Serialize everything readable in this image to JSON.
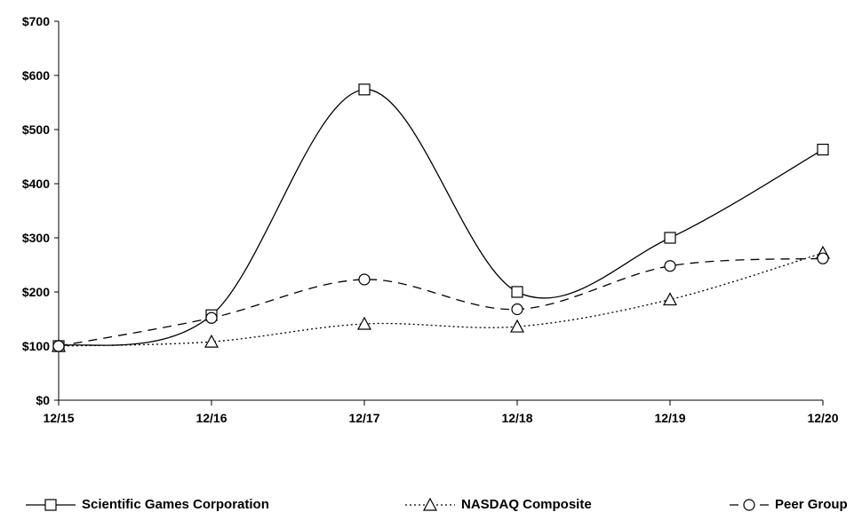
{
  "chart_data": {
    "type": "line",
    "categories": [
      "12/15",
      "12/16",
      "12/17",
      "12/18",
      "12/19",
      "12/20"
    ],
    "y_ticks": [
      "$0",
      "$100",
      "$200",
      "$300",
      "$400",
      "$500",
      "$600",
      "$700"
    ],
    "ylim": [
      0,
      700
    ],
    "grid": false,
    "legend_position": "bottom",
    "series": [
      {
        "name": "Scientific Games Corporation",
        "marker": "square",
        "dash": "solid",
        "values": [
          100,
          157,
          574,
          200,
          300,
          463
        ]
      },
      {
        "name": "NASDAQ Composite",
        "marker": "triangle",
        "dash": "dotted",
        "values": [
          100,
          108,
          141,
          136,
          186,
          272
        ]
      },
      {
        "name": "Peer Group",
        "marker": "circle",
        "dash": "dashed",
        "values": [
          100,
          152,
          223,
          168,
          248,
          262
        ]
      }
    ],
    "colors": {
      "line": "#000000",
      "axis": "#000000",
      "background": "#ffffff"
    }
  }
}
